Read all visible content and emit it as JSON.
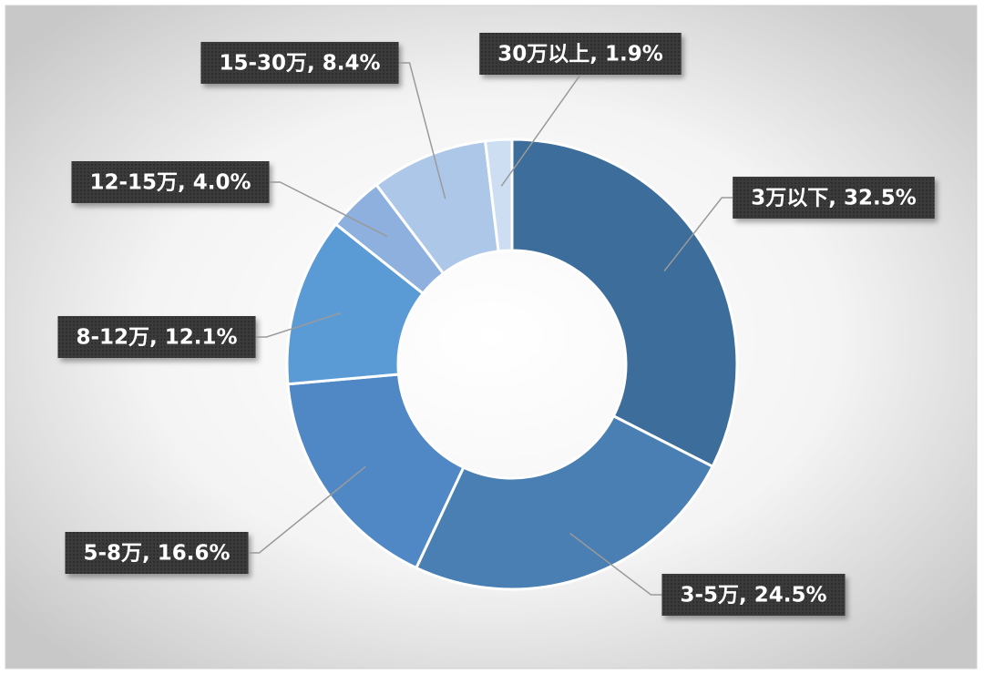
{
  "chart_data": {
    "type": "donut",
    "categories": [
      "3万以下",
      "3-5万",
      "5-8万",
      "8-12万",
      "12-15万",
      "15-30万",
      "30万以上"
    ],
    "values": [
      32.5,
      24.5,
      16.6,
      12.1,
      4.0,
      8.4,
      1.9
    ],
    "value_labels": [
      "3万以下, 32.5%",
      "3-5万, 24.5%",
      "5-8万, 16.6%",
      "8-12万, 12.1%",
      "12-15万, 4.0%",
      "15-30万, 8.4%",
      "30万以上, 1.9%"
    ],
    "colors": [
      "#3d6d9a",
      "#4a7fb3",
      "#4f88c4",
      "#5b9bd5",
      "#8db0de",
      "#adc7e8",
      "#cdddf2"
    ]
  }
}
